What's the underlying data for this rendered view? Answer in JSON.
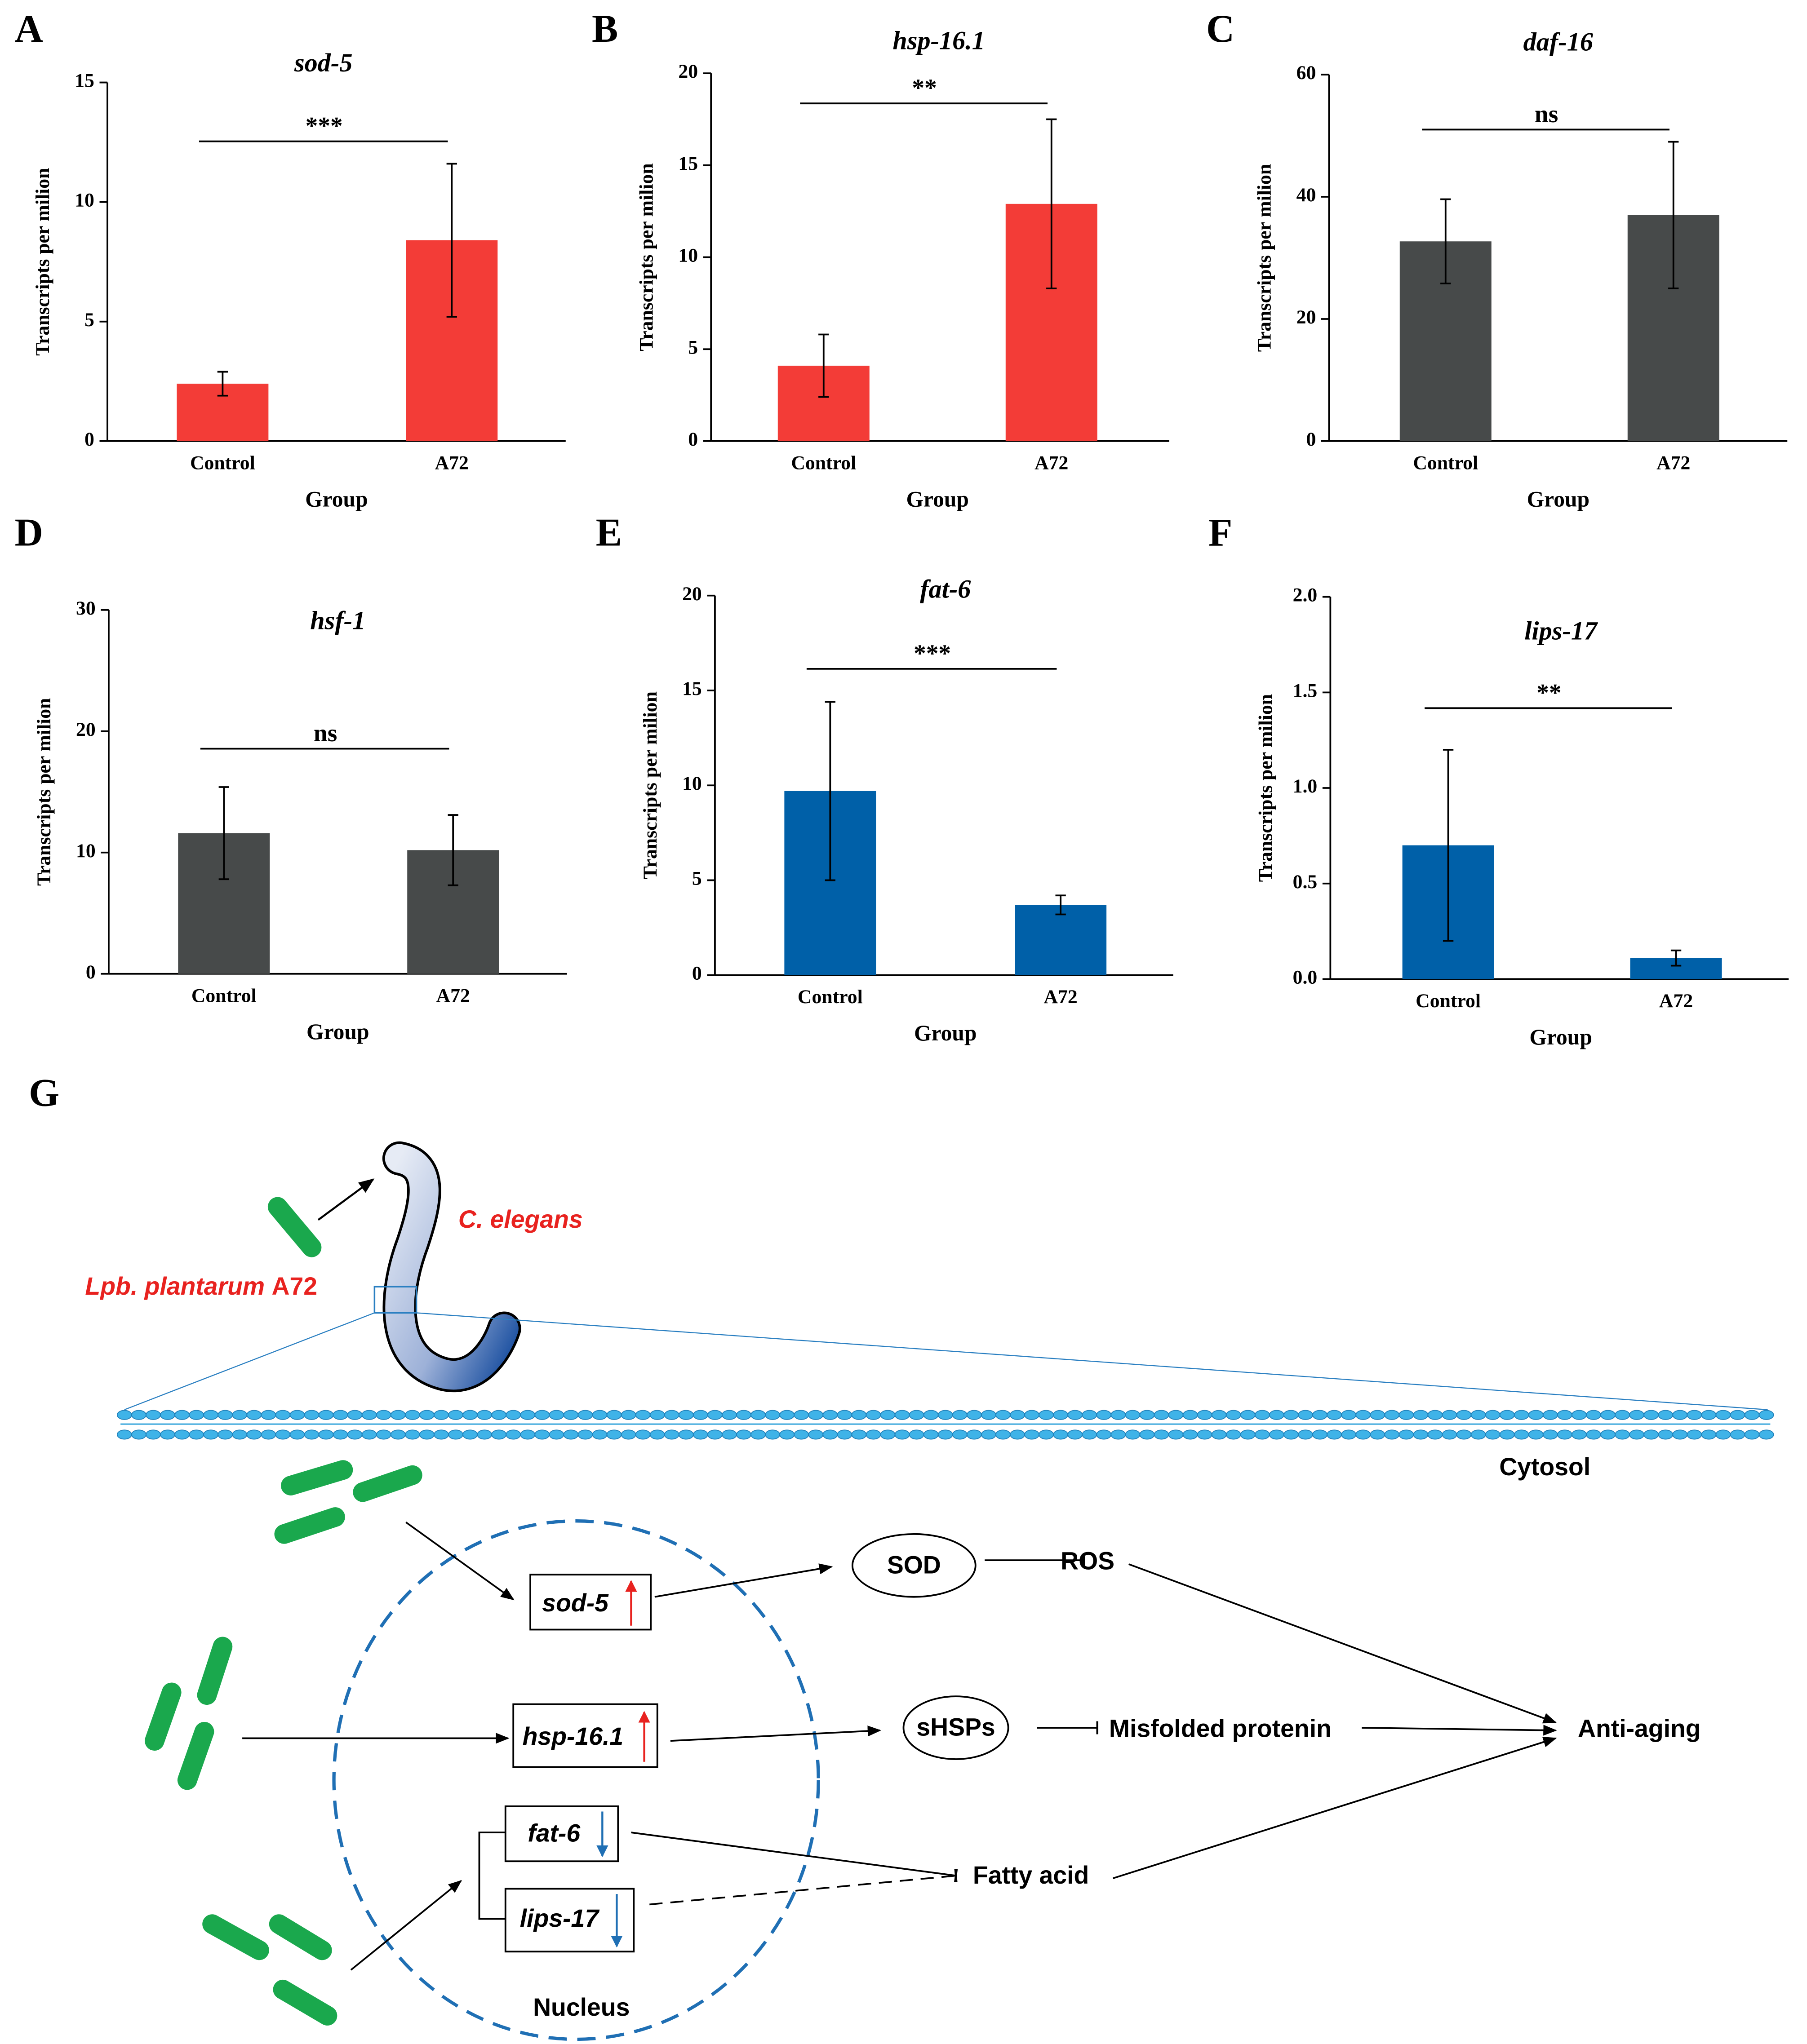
{
  "chart_data": [
    {
      "type": "bar",
      "panel": "A",
      "title": "sod-5",
      "significance": "***",
      "xlabel": "Group",
      "ylabel": "Transcripts per milion",
      "categories": [
        "Control",
        "A72"
      ],
      "values": [
        2.4,
        8.4
      ],
      "errors": [
        0.5,
        3.2
      ],
      "color": "#f33c37",
      "ylim": [
        0,
        15
      ],
      "yticks": [
        0,
        5,
        10,
        15
      ]
    },
    {
      "type": "bar",
      "panel": "B",
      "title": "hsp-16.1",
      "significance": "**",
      "xlabel": "Group",
      "ylabel": "Transcripts per milion",
      "categories": [
        "Control",
        "A72"
      ],
      "values": [
        4.1,
        12.9
      ],
      "errors": [
        1.7,
        4.6
      ],
      "color": "#f33c37",
      "ylim": [
        0,
        20
      ],
      "yticks": [
        0,
        5,
        10,
        15,
        20
      ]
    },
    {
      "type": "bar",
      "panel": "C",
      "title": "daf-16",
      "significance": "ns",
      "xlabel": "Group",
      "ylabel": "Transcripts per milion",
      "categories": [
        "Control",
        "A72"
      ],
      "values": [
        32.7,
        37.0
      ],
      "errors": [
        6.9,
        12.0
      ],
      "color": "#474a4a",
      "ylim": [
        0,
        60
      ],
      "yticks": [
        0,
        20,
        40,
        60
      ]
    },
    {
      "type": "bar",
      "panel": "D",
      "title": "hsf-1",
      "significance": "ns",
      "xlabel": "Group",
      "ylabel": "Transcripts per milion",
      "categories": [
        "Control",
        "A72"
      ],
      "values": [
        11.6,
        10.2
      ],
      "errors": [
        3.8,
        2.9
      ],
      "color": "#474a4a",
      "ylim": [
        0,
        30
      ],
      "yticks": [
        0,
        10,
        20,
        30
      ]
    },
    {
      "type": "bar",
      "panel": "E",
      "title": "fat-6",
      "significance": "***",
      "xlabel": "Group",
      "ylabel": "Transcripts per milion",
      "categories": [
        "Control",
        "A72"
      ],
      "values": [
        9.7,
        3.7
      ],
      "errors": [
        4.7,
        0.5
      ],
      "color": "#0060a8",
      "ylim": [
        0,
        20
      ],
      "yticks": [
        0,
        5,
        10,
        15,
        20
      ]
    },
    {
      "type": "bar",
      "panel": "F",
      "title": "lips-17",
      "significance": "**",
      "xlabel": "Group",
      "ylabel": "Transcripts per milion",
      "categories": [
        "Control",
        "A72"
      ],
      "values": [
        0.7,
        0.11
      ],
      "errors": [
        0.5,
        0.04
      ],
      "color": "#0060a8",
      "ylim": [
        0,
        2
      ],
      "yticks": [
        {
          "value": 0,
          "label": "0.0"
        },
        0.5,
        {
          "value": 1,
          "label": "1.0"
        },
        1.5,
        {
          "value": 2,
          "label": "2.0"
        }
      ]
    }
  ],
  "diagram": {
    "panel": "G",
    "organism": "C. elegans",
    "strain_genus": "Lpb. plantarum",
    "strain_id": "A72",
    "cytosol": "Cytosol",
    "nucleus": "Nucleus",
    "genes": [
      "sod-5",
      "hsp-16.1",
      "fat-6",
      "lips-17"
    ],
    "nodes": [
      "SOD",
      "ROS",
      "sHSPs",
      "Misfolded protenin",
      "Fatty acid",
      "Anti-aging"
    ]
  }
}
